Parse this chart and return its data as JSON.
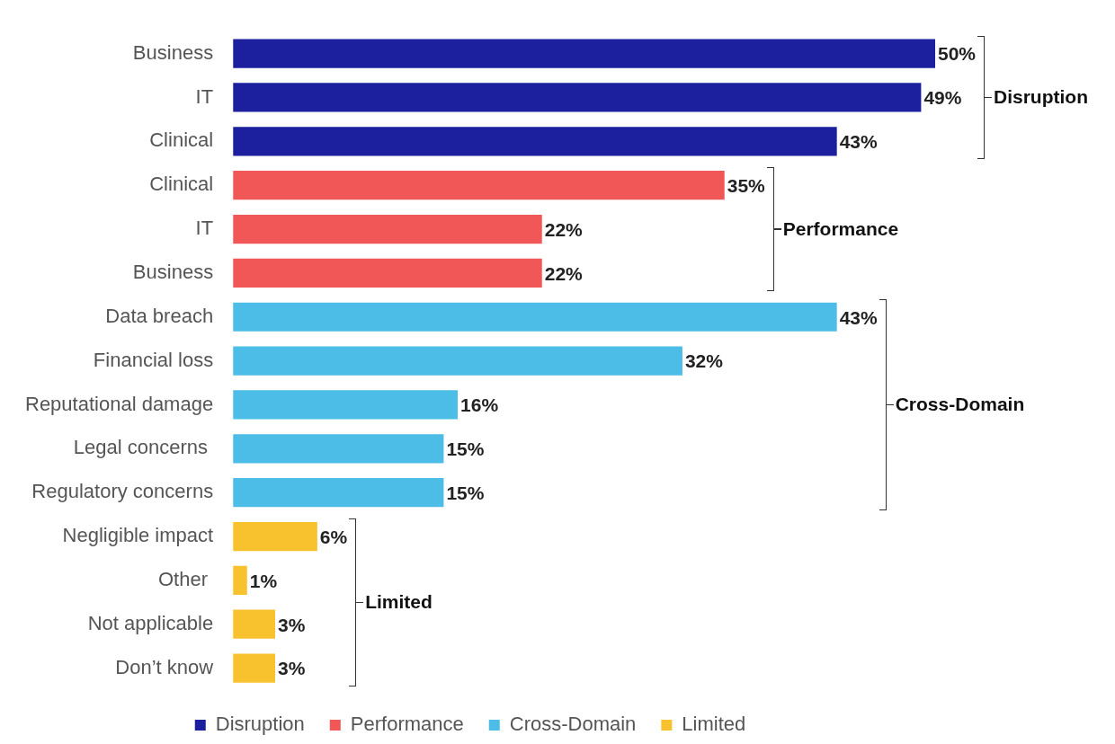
{
  "chart_data": {
    "type": "bar",
    "orientation": "horizontal",
    "categories": [
      "Business",
      "IT",
      "Clinical",
      "Clinical",
      "IT",
      "Business",
      "Data breach",
      "Financial loss",
      "Reputational damage",
      "Legal concerns ",
      "Regulatory concerns",
      "Negligible impact",
      "Other ",
      "Not applicable",
      "Don’t know"
    ],
    "series": [
      {
        "name": "Disruption",
        "color": "#1c1f9e",
        "values": [
          50,
          49,
          43,
          null,
          null,
          null,
          null,
          null,
          null,
          null,
          null,
          null,
          null,
          null,
          null
        ],
        "value_labels": [
          "50%",
          "49%",
          "43%",
          null,
          null,
          null,
          null,
          null,
          null,
          null,
          null,
          null,
          null,
          null,
          null
        ]
      },
      {
        "name": "Performance",
        "color": "#f25757",
        "values": [
          null,
          null,
          null,
          35,
          22,
          22,
          null,
          null,
          null,
          null,
          null,
          null,
          null,
          null,
          null
        ],
        "value_labels": [
          null,
          null,
          null,
          "35%",
          "22%",
          "22%",
          null,
          null,
          null,
          null,
          null,
          null,
          null,
          null,
          null
        ]
      },
      {
        "name": "Cross-Domain",
        "color": "#4bbde6",
        "values": [
          null,
          null,
          null,
          null,
          null,
          null,
          43,
          32,
          16,
          15,
          15,
          null,
          null,
          null,
          null
        ],
        "value_labels": [
          null,
          null,
          null,
          null,
          null,
          null,
          "43%",
          "32%",
          "16%",
          "15%",
          "15%",
          null,
          null,
          null,
          null
        ]
      },
      {
        "name": "Limited",
        "color": "#f8c22e",
        "values": [
          null,
          null,
          null,
          null,
          null,
          null,
          null,
          null,
          null,
          null,
          null,
          6,
          1,
          3,
          3
        ],
        "value_labels": [
          null,
          null,
          null,
          null,
          null,
          null,
          null,
          null,
          null,
          null,
          null,
          "6%",
          "1%",
          "3%",
          "3%"
        ]
      }
    ],
    "annotations": [
      "Disruption",
      "Performance",
      "Cross-Domain",
      "Limited"
    ],
    "legend": "bottom",
    "grid": false
  }
}
